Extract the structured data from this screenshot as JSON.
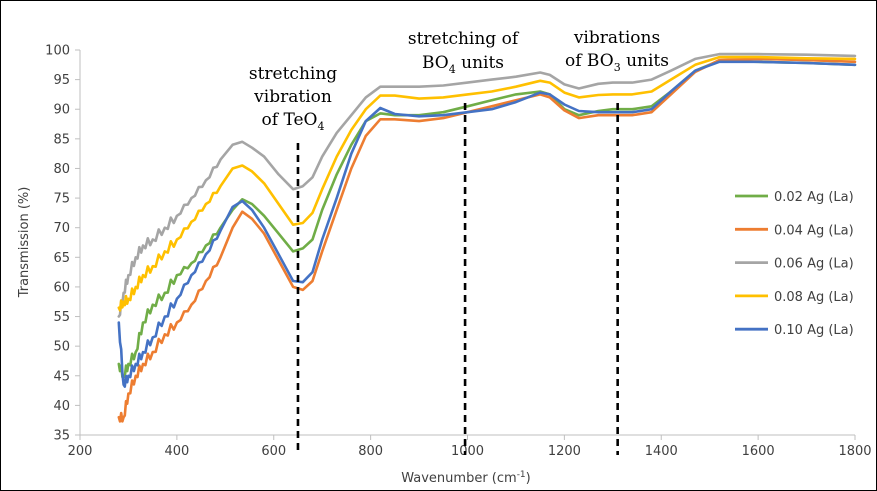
{
  "chart_data": {
    "type": "line",
    "xlabel": "Wavenumber (cm",
    "xlabel_sup": "-1",
    "xlabel_end": ")",
    "ylabel": "Transmission (%)",
    "xlim": [
      200,
      1800
    ],
    "ylim": [
      35,
      100
    ],
    "x_ticks": [
      200,
      400,
      600,
      800,
      1000,
      1200,
      1400,
      1600,
      1800
    ],
    "y_ticks": [
      35,
      40,
      45,
      50,
      55,
      60,
      65,
      70,
      75,
      80,
      85,
      90,
      95,
      100
    ],
    "grid": false,
    "legend_position": "right",
    "series": [
      {
        "name": "0.02 Ag (La)",
        "color": "#70ad47",
        "points": [
          [
            280,
            47
          ],
          [
            290,
            45
          ],
          [
            300,
            47
          ],
          [
            315,
            49
          ],
          [
            330,
            54
          ],
          [
            350,
            57
          ],
          [
            375,
            59
          ],
          [
            400,
            62
          ],
          [
            430,
            64
          ],
          [
            460,
            67
          ],
          [
            490,
            70
          ],
          [
            515,
            73
          ],
          [
            535,
            74.8
          ],
          [
            555,
            74
          ],
          [
            580,
            72
          ],
          [
            610,
            69
          ],
          [
            640,
            66
          ],
          [
            660,
            66.5
          ],
          [
            680,
            68
          ],
          [
            700,
            73
          ],
          [
            730,
            79
          ],
          [
            760,
            84
          ],
          [
            790,
            88
          ],
          [
            820,
            89.3
          ],
          [
            850,
            89
          ],
          [
            900,
            89
          ],
          [
            950,
            89.5
          ],
          [
            1000,
            90.5
          ],
          [
            1050,
            91.5
          ],
          [
            1100,
            92.5
          ],
          [
            1150,
            93
          ],
          [
            1170,
            92.5
          ],
          [
            1200,
            90
          ],
          [
            1230,
            89
          ],
          [
            1270,
            89.7
          ],
          [
            1300,
            90
          ],
          [
            1340,
            90
          ],
          [
            1380,
            90.5
          ],
          [
            1420,
            93
          ],
          [
            1470,
            96.5
          ],
          [
            1520,
            98.2
          ],
          [
            1600,
            98
          ],
          [
            1700,
            97.8
          ],
          [
            1800,
            97.5
          ]
        ]
      },
      {
        "name": "0.04 Ag (La)",
        "color": "#ed7d31",
        "points": [
          [
            280,
            38
          ],
          [
            290,
            38
          ],
          [
            300,
            42
          ],
          [
            315,
            45
          ],
          [
            330,
            47
          ],
          [
            350,
            49
          ],
          [
            375,
            52
          ],
          [
            400,
            54
          ],
          [
            430,
            57
          ],
          [
            460,
            61
          ],
          [
            490,
            65
          ],
          [
            515,
            70
          ],
          [
            535,
            72.7
          ],
          [
            555,
            71.5
          ],
          [
            580,
            69
          ],
          [
            610,
            64.5
          ],
          [
            640,
            60
          ],
          [
            660,
            59.5
          ],
          [
            680,
            61
          ],
          [
            700,
            66
          ],
          [
            730,
            73
          ],
          [
            760,
            80
          ],
          [
            790,
            85.5
          ],
          [
            820,
            88.3
          ],
          [
            850,
            88.3
          ],
          [
            900,
            88
          ],
          [
            950,
            88.5
          ],
          [
            1000,
            89.5
          ],
          [
            1050,
            90.5
          ],
          [
            1100,
            91.5
          ],
          [
            1150,
            92.5
          ],
          [
            1170,
            92
          ],
          [
            1200,
            89.8
          ],
          [
            1230,
            88.5
          ],
          [
            1270,
            89
          ],
          [
            1300,
            89
          ],
          [
            1340,
            89
          ],
          [
            1380,
            89.5
          ],
          [
            1420,
            92.5
          ],
          [
            1470,
            96.3
          ],
          [
            1520,
            98.3
          ],
          [
            1600,
            98.5
          ],
          [
            1700,
            98.3
          ],
          [
            1800,
            98
          ]
        ]
      },
      {
        "name": "0.06 Ag (La)",
        "color": "#a5a5a5",
        "points": [
          [
            280,
            55
          ],
          [
            290,
            59
          ],
          [
            300,
            62
          ],
          [
            315,
            65
          ],
          [
            330,
            67
          ],
          [
            350,
            68
          ],
          [
            375,
            70
          ],
          [
            400,
            72
          ],
          [
            430,
            75
          ],
          [
            460,
            78
          ],
          [
            490,
            81.5
          ],
          [
            515,
            84
          ],
          [
            535,
            84.5
          ],
          [
            555,
            83.5
          ],
          [
            580,
            82
          ],
          [
            610,
            79
          ],
          [
            640,
            76.5
          ],
          [
            660,
            77
          ],
          [
            680,
            78.5
          ],
          [
            700,
            82
          ],
          [
            730,
            86
          ],
          [
            760,
            89
          ],
          [
            790,
            92
          ],
          [
            820,
            93.8
          ],
          [
            850,
            93.8
          ],
          [
            900,
            93.8
          ],
          [
            950,
            94
          ],
          [
            1000,
            94.5
          ],
          [
            1050,
            95
          ],
          [
            1100,
            95.5
          ],
          [
            1150,
            96.2
          ],
          [
            1170,
            95.8
          ],
          [
            1200,
            94.2
          ],
          [
            1230,
            93.5
          ],
          [
            1270,
            94.3
          ],
          [
            1300,
            94.5
          ],
          [
            1340,
            94.5
          ],
          [
            1380,
            95
          ],
          [
            1420,
            96.5
          ],
          [
            1470,
            98.5
          ],
          [
            1520,
            99.3
          ],
          [
            1600,
            99.3
          ],
          [
            1700,
            99.2
          ],
          [
            1800,
            99
          ]
        ]
      },
      {
        "name": "0.08 Ag (La)",
        "color": "#ffc000",
        "points": [
          [
            280,
            56.5
          ],
          [
            290,
            57.5
          ],
          [
            300,
            58
          ],
          [
            315,
            60
          ],
          [
            330,
            62
          ],
          [
            350,
            63.5
          ],
          [
            375,
            66
          ],
          [
            400,
            68
          ],
          [
            430,
            71
          ],
          [
            460,
            74
          ],
          [
            490,
            77
          ],
          [
            515,
            80
          ],
          [
            535,
            80.5
          ],
          [
            555,
            79.5
          ],
          [
            580,
            77.5
          ],
          [
            610,
            74
          ],
          [
            640,
            70.5
          ],
          [
            660,
            70.8
          ],
          [
            680,
            72.5
          ],
          [
            700,
            76.5
          ],
          [
            730,
            82
          ],
          [
            760,
            86.5
          ],
          [
            790,
            90
          ],
          [
            820,
            92.3
          ],
          [
            850,
            92.3
          ],
          [
            900,
            91.8
          ],
          [
            950,
            92
          ],
          [
            1000,
            92.5
          ],
          [
            1050,
            93
          ],
          [
            1100,
            93.8
          ],
          [
            1150,
            94.8
          ],
          [
            1170,
            94.5
          ],
          [
            1200,
            92.8
          ],
          [
            1230,
            92
          ],
          [
            1270,
            92.4
          ],
          [
            1300,
            92.5
          ],
          [
            1340,
            92.5
          ],
          [
            1380,
            93
          ],
          [
            1420,
            95
          ],
          [
            1470,
            97.5
          ],
          [
            1520,
            98.8
          ],
          [
            1600,
            98.8
          ],
          [
            1700,
            98.6
          ],
          [
            1800,
            98.5
          ]
        ]
      },
      {
        "name": "0.10 Ag (La)",
        "color": "#4472c4",
        "points": [
          [
            280,
            54
          ],
          [
            290,
            43.5
          ],
          [
            300,
            45
          ],
          [
            315,
            47
          ],
          [
            330,
            49
          ],
          [
            350,
            51.5
          ],
          [
            375,
            55
          ],
          [
            400,
            58
          ],
          [
            430,
            62
          ],
          [
            460,
            65.5
          ],
          [
            490,
            69.5
          ],
          [
            515,
            73.5
          ],
          [
            535,
            74.5
          ],
          [
            555,
            73
          ],
          [
            580,
            70
          ],
          [
            610,
            65.5
          ],
          [
            640,
            61
          ],
          [
            660,
            60.8
          ],
          [
            680,
            62.5
          ],
          [
            700,
            68
          ],
          [
            730,
            75
          ],
          [
            760,
            82.5
          ],
          [
            790,
            88
          ],
          [
            820,
            90.2
          ],
          [
            850,
            89.2
          ],
          [
            900,
            88.8
          ],
          [
            950,
            89
          ],
          [
            1000,
            89.5
          ],
          [
            1050,
            90
          ],
          [
            1100,
            91.2
          ],
          [
            1150,
            92.8
          ],
          [
            1170,
            92.5
          ],
          [
            1200,
            90.8
          ],
          [
            1230,
            89.7
          ],
          [
            1270,
            89.5
          ],
          [
            1300,
            89.5
          ],
          [
            1340,
            89.5
          ],
          [
            1380,
            90
          ],
          [
            1420,
            93
          ],
          [
            1470,
            96.5
          ],
          [
            1520,
            98
          ],
          [
            1600,
            98
          ],
          [
            1700,
            97.8
          ],
          [
            1800,
            97.5
          ]
        ]
      }
    ],
    "markers": [
      {
        "x": 650,
        "label_lines": [
          "stretching",
          "vibration",
          "of TeO"
        ],
        "sub": "4"
      },
      {
        "x": 995,
        "label_lines": [
          "stretching of",
          "BO"
        ],
        "sub": "4",
        "after_sub": " units"
      },
      {
        "x": 1310,
        "label_lines": [
          "vibrations",
          "of BO"
        ],
        "sub": "3",
        "after_sub": " units"
      }
    ]
  }
}
